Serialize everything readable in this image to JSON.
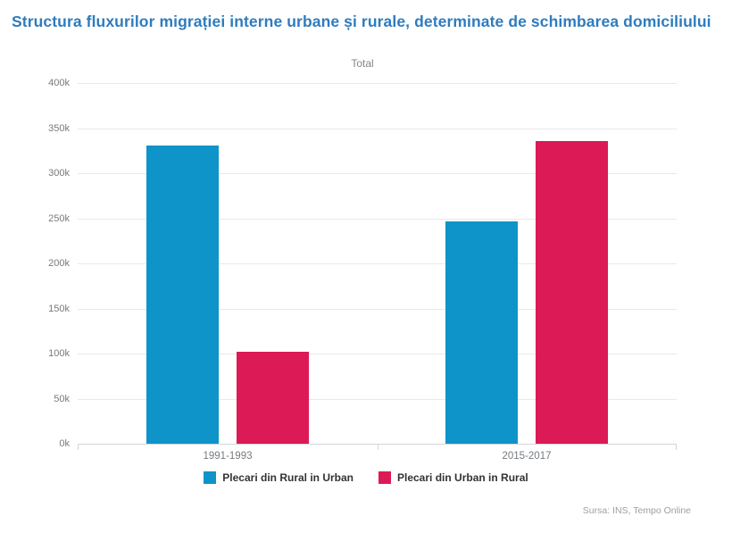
{
  "page": {
    "title": "Structura fluxurilor migrației interne urbane și rurale, determinate de schimbarea domiciliului",
    "source": "Sursa: INS, Tempo Online"
  },
  "chart_data": {
    "type": "bar",
    "title": "Total",
    "categories": [
      "1991-1993",
      "2015-2017"
    ],
    "series": [
      {
        "name": "Plecari din Rural in Urban",
        "color": "#0e94c8",
        "values_k": [
          331,
          247
        ]
      },
      {
        "name": "Plecari din Urban in Rural",
        "color": "#dc1a56",
        "values_k": [
          102,
          336
        ]
      }
    ],
    "yticks_k": [
      0,
      50,
      100,
      150,
      200,
      250,
      300,
      350,
      400
    ],
    "ymax_k": 400,
    "ytick_suffix": "k",
    "ylim": [
      0,
      400000
    ],
    "grid": true,
    "legend_position": "bottom",
    "colors": {
      "title_text": "#2e7cbe",
      "axis_label": "#767a7e",
      "gridline": "#e8e9eb",
      "axis_line": "#d3d7db",
      "legend_text": "#333333"
    }
  }
}
